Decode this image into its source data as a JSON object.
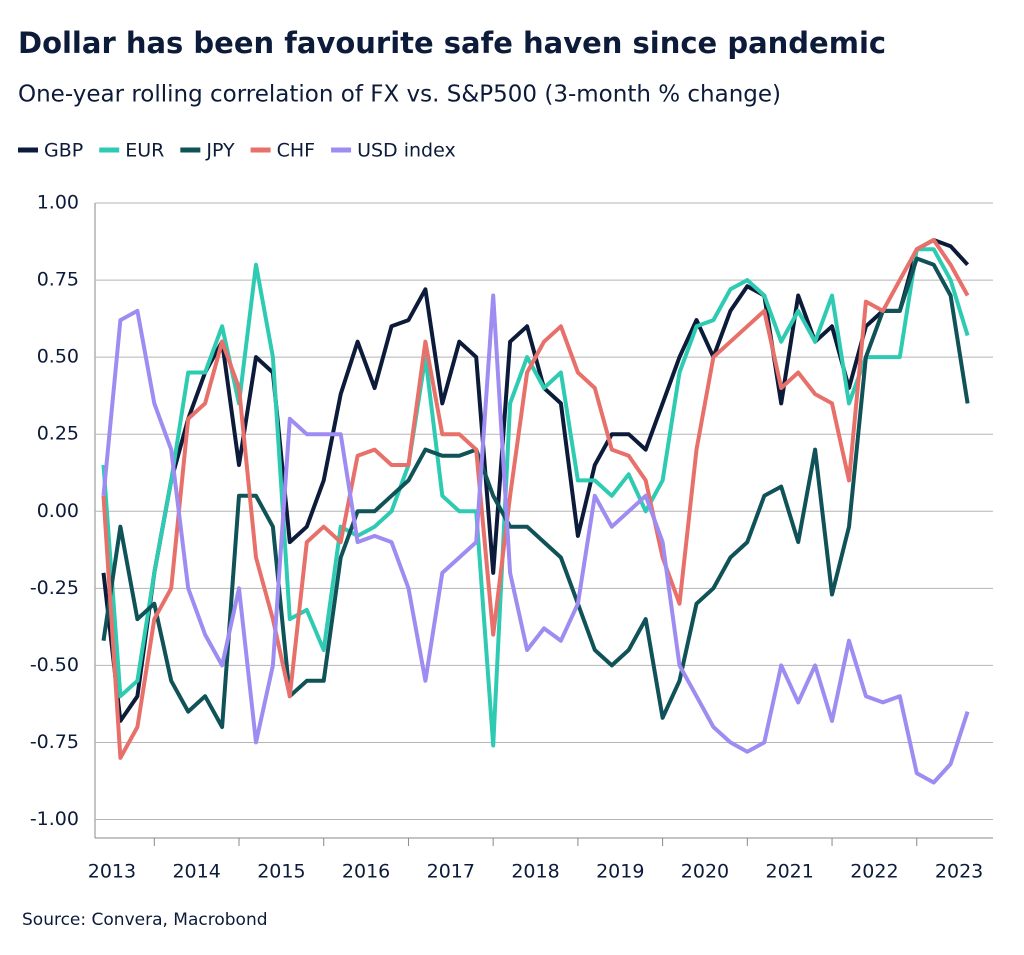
{
  "chart_data": {
    "type": "line",
    "title": "Dollar has been favourite safe haven since pandemic",
    "subtitle": "One-year rolling correlation of FX vs. S&P500 (3-month % change)",
    "source": "Source: Convera, Macrobond",
    "x": [
      2013.4,
      2013.6,
      2013.8,
      2014.0,
      2014.2,
      2014.4,
      2014.6,
      2014.8,
      2015.0,
      2015.2,
      2015.4,
      2015.6,
      2015.8,
      2016.0,
      2016.2,
      2016.4,
      2016.6,
      2016.8,
      2017.0,
      2017.2,
      2017.4,
      2017.6,
      2017.8,
      2018.0,
      2018.2,
      2018.4,
      2018.6,
      2018.8,
      2019.0,
      2019.2,
      2019.4,
      2019.6,
      2019.8,
      2020.0,
      2020.2,
      2020.4,
      2020.6,
      2020.8,
      2021.0,
      2021.2,
      2021.4,
      2021.6,
      2021.8,
      2022.0,
      2022.2,
      2022.4,
      2022.6,
      2022.8,
      2023.0,
      2023.2,
      2023.4,
      2023.6
    ],
    "xlim": [
      2013.3,
      2023.9
    ],
    "xticks": [
      {
        "value": 2013.5,
        "label": "2013"
      },
      {
        "value": 2014.5,
        "label": "2014"
      },
      {
        "value": 2015.5,
        "label": "2015"
      },
      {
        "value": 2016.5,
        "label": "2016"
      },
      {
        "value": 2017.5,
        "label": "2017"
      },
      {
        "value": 2018.5,
        "label": "2018"
      },
      {
        "value": 2019.5,
        "label": "2019"
      },
      {
        "value": 2020.5,
        "label": "2020"
      },
      {
        "value": 2021.5,
        "label": "2021"
      },
      {
        "value": 2022.5,
        "label": "2022"
      },
      {
        "value": 2023.5,
        "label": "2023"
      }
    ],
    "xtick_marks": [
      2014,
      2015,
      2016,
      2017,
      2018,
      2019,
      2020,
      2021,
      2022,
      2023
    ],
    "ylim": [
      -1.06,
      1.0
    ],
    "yticks": [
      {
        "value": 1,
        "label": "1.00"
      },
      {
        "value": 0.75,
        "label": "0.75"
      },
      {
        "value": 0.5,
        "label": "0.50"
      },
      {
        "value": 0.25,
        "label": "0.25"
      },
      {
        "value": 0,
        "label": "0.00"
      },
      {
        "value": -0.25,
        "label": "-0.25"
      },
      {
        "value": -0.5,
        "label": "-0.50"
      },
      {
        "value": -0.75,
        "label": "-0.75"
      },
      {
        "value": -1,
        "label": "-1.00"
      }
    ],
    "grid": true,
    "series": [
      {
        "name": "GBP",
        "color": "#0d1b3a",
        "values": [
          -0.2,
          -0.68,
          -0.6,
          -0.2,
          0.1,
          0.3,
          0.45,
          0.55,
          0.15,
          0.5,
          0.45,
          -0.1,
          -0.05,
          0.1,
          0.38,
          0.55,
          0.4,
          0.6,
          0.62,
          0.72,
          0.35,
          0.55,
          0.5,
          -0.2,
          0.55,
          0.6,
          0.4,
          0.35,
          -0.08,
          0.15,
          0.25,
          0.25,
          0.2,
          0.35,
          0.5,
          0.62,
          0.5,
          0.65,
          0.73,
          0.7,
          0.35,
          0.7,
          0.55,
          0.6,
          0.4,
          0.6,
          0.65,
          0.65,
          0.85,
          0.88,
          0.86,
          0.8
        ]
      },
      {
        "name": "EUR",
        "color": "#2ecbb2",
        "values": [
          0.15,
          -0.6,
          -0.55,
          -0.2,
          0.1,
          0.45,
          0.45,
          0.6,
          0.35,
          0.8,
          0.5,
          -0.35,
          -0.32,
          -0.45,
          -0.05,
          -0.08,
          -0.05,
          0.0,
          0.15,
          0.5,
          0.05,
          0.0,
          0.0,
          -0.76,
          0.35,
          0.5,
          0.4,
          0.45,
          0.1,
          0.1,
          0.05,
          0.12,
          0.0,
          0.1,
          0.45,
          0.6,
          0.62,
          0.72,
          0.75,
          0.7,
          0.55,
          0.65,
          0.55,
          0.7,
          0.35,
          0.5,
          0.5,
          0.5,
          0.85,
          0.85,
          0.75,
          0.57
        ]
      },
      {
        "name": "JPY",
        "color": "#0f5257",
        "values": [
          -0.42,
          -0.05,
          -0.35,
          -0.3,
          -0.55,
          -0.65,
          -0.6,
          -0.7,
          0.05,
          0.05,
          -0.05,
          -0.6,
          -0.55,
          -0.55,
          -0.15,
          0.0,
          0.0,
          0.05,
          0.1,
          0.2,
          0.18,
          0.18,
          0.2,
          0.05,
          -0.05,
          -0.05,
          -0.1,
          -0.15,
          -0.3,
          -0.45,
          -0.5,
          -0.45,
          -0.35,
          -0.67,
          -0.55,
          -0.3,
          -0.25,
          -0.15,
          -0.1,
          0.05,
          0.08,
          -0.1,
          0.2,
          -0.27,
          -0.05,
          0.5,
          0.65,
          0.65,
          0.82,
          0.8,
          0.7,
          0.35
        ]
      },
      {
        "name": "CHF",
        "color": "#e8706a",
        "values": [
          0.05,
          -0.8,
          -0.7,
          -0.35,
          -0.25,
          0.3,
          0.35,
          0.55,
          0.4,
          -0.15,
          -0.35,
          -0.6,
          -0.1,
          -0.05,
          -0.1,
          0.18,
          0.2,
          0.15,
          0.15,
          0.55,
          0.25,
          0.25,
          0.2,
          -0.4,
          0.05,
          0.45,
          0.55,
          0.6,
          0.45,
          0.4,
          0.2,
          0.18,
          0.1,
          -0.15,
          -0.3,
          0.2,
          0.5,
          0.55,
          0.6,
          0.65,
          0.4,
          0.45,
          0.38,
          0.35,
          0.1,
          0.68,
          0.65,
          0.75,
          0.85,
          0.88,
          0.8,
          0.7
        ]
      },
      {
        "name": "USD index",
        "color": "#9f8cf2",
        "values": [
          0.05,
          0.62,
          0.65,
          0.35,
          0.2,
          -0.25,
          -0.4,
          -0.5,
          -0.25,
          -0.75,
          -0.5,
          0.3,
          0.25,
          0.25,
          0.25,
          -0.1,
          -0.08,
          -0.1,
          -0.25,
          -0.55,
          -0.2,
          -0.15,
          -0.1,
          0.7,
          -0.2,
          -0.45,
          -0.38,
          -0.42,
          -0.3,
          0.05,
          -0.05,
          0.0,
          0.05,
          -0.1,
          -0.5,
          -0.6,
          -0.7,
          -0.75,
          -0.78,
          -0.75,
          -0.5,
          -0.62,
          -0.5,
          -0.68,
          -0.42,
          -0.6,
          -0.62,
          -0.6,
          -0.85,
          -0.88,
          -0.82,
          -0.65
        ]
      }
    ]
  }
}
